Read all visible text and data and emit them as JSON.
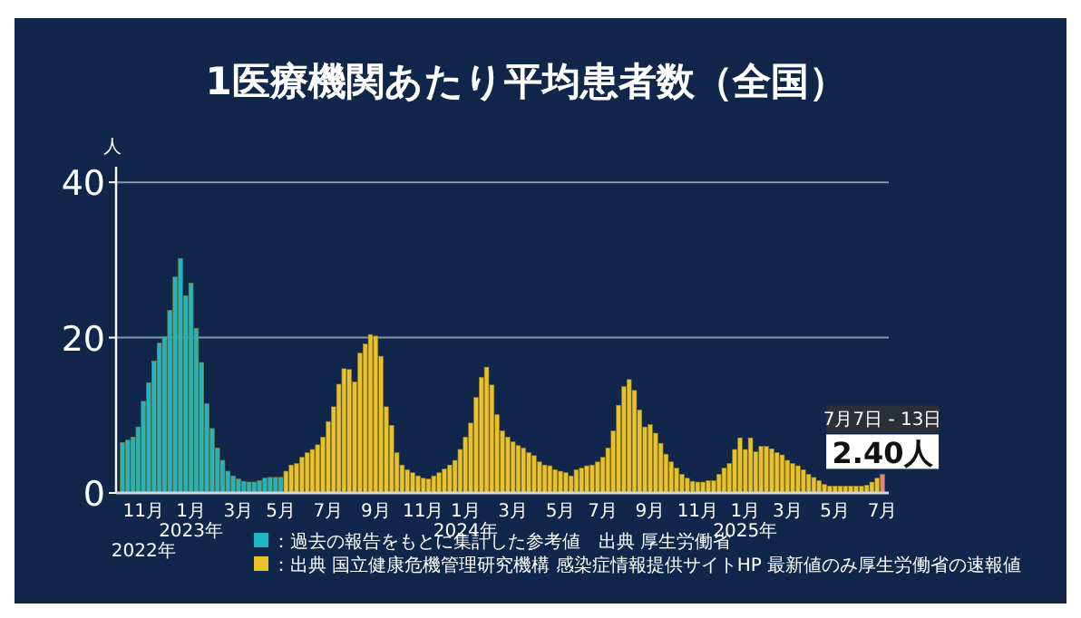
{
  "chart_data": {
    "type": "bar",
    "title": "1医療機関あたり平均患者数（全国）",
    "ylabel": "人",
    "categories": [
      null,
      null,
      null,
      null,
      "11月\n2022年",
      null,
      null,
      null,
      null,
      null,
      null,
      null,
      null,
      "1月\n2023年",
      null,
      null,
      null,
      null,
      null,
      null,
      null,
      null,
      "3月",
      null,
      null,
      null,
      null,
      null,
      null,
      null,
      "5月",
      null,
      null,
      null,
      null,
      null,
      null,
      null,
      null,
      "7月",
      null,
      null,
      null,
      null,
      null,
      null,
      null,
      null,
      "9月",
      null,
      null,
      null,
      null,
      null,
      null,
      null,
      null,
      "11月",
      null,
      null,
      null,
      null,
      null,
      null,
      null,
      "1月\n2024年",
      null,
      null,
      null,
      null,
      null,
      null,
      null,
      null,
      "3月",
      null,
      null,
      null,
      null,
      null,
      null,
      null,
      null,
      "5月",
      null,
      null,
      null,
      null,
      null,
      null,
      null,
      "7月",
      null,
      null,
      null,
      null,
      null,
      null,
      null,
      null,
      "9月",
      null,
      null,
      null,
      null,
      null,
      null,
      null,
      null,
      "11月",
      null,
      null,
      null,
      null,
      null,
      null,
      null,
      null,
      "1月\n2025年",
      null,
      null,
      null,
      null,
      null,
      null,
      null,
      "3月",
      null,
      null,
      null,
      null,
      null,
      null,
      null,
      null,
      "5月",
      null,
      null,
      null,
      null,
      null,
      null,
      null,
      null,
      "7月"
    ],
    "series": [
      {
        "name": "：過去の報告をもとに集計した参考値　出典 厚生労働省",
        "color": "#1fb5c4",
        "values": [
          6.5,
          6.8,
          7.2,
          8.5,
          11.8,
          14.2,
          17,
          19.3,
          20.1,
          23.5,
          27.8,
          30.2,
          25.4,
          27,
          21.2,
          16.8,
          11.5,
          8.3,
          5.8,
          4.2,
          2.8,
          2.2,
          1.8,
          1.5,
          1.4,
          1.4,
          1.6,
          1.9,
          2.0,
          2.0,
          2.0,
          null,
          null,
          null,
          null,
          null,
          null,
          null,
          null,
          null,
          null,
          null,
          null,
          null,
          null,
          null,
          null,
          null,
          null,
          null,
          null,
          null,
          null,
          null,
          null,
          null,
          null,
          null,
          null,
          null,
          null,
          null,
          null,
          null,
          null,
          null,
          null,
          null,
          null,
          null,
          null,
          null,
          null,
          null,
          null,
          null,
          null,
          null,
          null,
          null,
          null,
          null,
          null,
          null,
          null,
          null,
          null,
          null,
          null,
          null,
          null,
          null,
          null,
          null,
          null,
          null,
          null,
          null,
          null,
          null,
          null,
          null,
          null,
          null,
          null,
          null,
          null,
          null,
          null,
          null,
          null,
          null,
          null,
          null,
          null,
          null,
          null,
          null,
          null,
          null,
          null,
          null,
          null,
          null,
          null,
          null,
          null,
          null,
          null,
          null,
          null,
          null,
          null,
          null,
          null,
          null,
          null,
          null,
          null,
          null,
          null,
          null,
          null,
          null,
          null
        ]
      },
      {
        "name": "：出典 国立健康危機管理研究機構 感染症情報提供サイトHP 最新値のみ厚生労働省の速報値",
        "color": "#e8c12c",
        "values": [
          null,
          null,
          null,
          null,
          null,
          null,
          null,
          null,
          null,
          null,
          null,
          null,
          null,
          null,
          null,
          null,
          null,
          null,
          null,
          null,
          null,
          null,
          null,
          null,
          null,
          null,
          null,
          null,
          null,
          null,
          null,
          2.8,
          3.6,
          3.8,
          4.6,
          5.2,
          5.6,
          6.2,
          7.2,
          9.2,
          11.1,
          14,
          16,
          15.9,
          14.3,
          18,
          19.2,
          20.4,
          20.2,
          17.6,
          11.1,
          8.7,
          5.2,
          3.6,
          3.0,
          2.6,
          2.2,
          1.9,
          1.8,
          2.2,
          2.6,
          3.1,
          3.6,
          4.2,
          5.6,
          7.2,
          9,
          12.3,
          14.9,
          16.2,
          13.9,
          10.1,
          8,
          7.2,
          6.6,
          6.1,
          5.8,
          5.2,
          4.8,
          4,
          3.6,
          3.5,
          3,
          2.8,
          2.6,
          2.2,
          3,
          3.2,
          3.5,
          3.6,
          4,
          4.6,
          5.8,
          8,
          11.3,
          13.7,
          14.6,
          13.2,
          10.7,
          8.5,
          8.8,
          7.7,
          6.4,
          5,
          4,
          3.2,
          2.4,
          1.9,
          1.5,
          1.4,
          1.4,
          1.6,
          1.6,
          2.4,
          3.2,
          3.8,
          5.6,
          7.1,
          5.6,
          7.1,
          5.3,
          6,
          6,
          5.7,
          5.2,
          4.9,
          4.2,
          3.8,
          3.5,
          3,
          2.4,
          2,
          1.6,
          1.1,
          0.9,
          0.9,
          0.9,
          0.9,
          0.9,
          0.9,
          0.9,
          1,
          1.4,
          1.9,
          null
        ]
      },
      {
        "color": "#e8837a",
        "values": [
          null,
          null,
          null,
          null,
          null,
          null,
          null,
          null,
          null,
          null,
          null,
          null,
          null,
          null,
          null,
          null,
          null,
          null,
          null,
          null,
          null,
          null,
          null,
          null,
          null,
          null,
          null,
          null,
          null,
          null,
          null,
          null,
          null,
          null,
          null,
          null,
          null,
          null,
          null,
          null,
          null,
          null,
          null,
          null,
          null,
          null,
          null,
          null,
          null,
          null,
          null,
          null,
          null,
          null,
          null,
          null,
          null,
          null,
          null,
          null,
          null,
          null,
          null,
          null,
          null,
          null,
          null,
          null,
          null,
          null,
          null,
          null,
          null,
          null,
          null,
          null,
          null,
          null,
          null,
          null,
          null,
          null,
          null,
          null,
          null,
          null,
          null,
          null,
          null,
          null,
          null,
          null,
          null,
          null,
          null,
          null,
          null,
          null,
          null,
          null,
          null,
          null,
          null,
          null,
          null,
          null,
          null,
          null,
          null,
          null,
          null,
          null,
          null,
          null,
          null,
          null,
          null,
          null,
          null,
          null,
          null,
          null,
          null,
          null,
          null,
          null,
          null,
          null,
          null,
          null,
          null,
          null,
          null,
          null,
          null,
          null,
          null,
          null,
          null,
          null,
          null,
          null,
          null,
          null,
          2.4
        ],
        "value_labels": [
          null,
          null,
          null,
          null,
          null,
          null,
          null,
          null,
          null,
          null,
          null,
          null,
          null,
          null,
          null,
          null,
          null,
          null,
          null,
          null,
          null,
          null,
          null,
          null,
          null,
          null,
          null,
          null,
          null,
          null,
          null,
          null,
          null,
          null,
          null,
          null,
          null,
          null,
          null,
          null,
          null,
          null,
          null,
          null,
          null,
          null,
          null,
          null,
          null,
          null,
          null,
          null,
          null,
          null,
          null,
          null,
          null,
          null,
          null,
          null,
          null,
          null,
          null,
          null,
          null,
          null,
          null,
          null,
          null,
          null,
          null,
          null,
          null,
          null,
          null,
          null,
          null,
          null,
          null,
          null,
          null,
          null,
          null,
          null,
          null,
          null,
          null,
          null,
          null,
          null,
          null,
          null,
          null,
          null,
          null,
          null,
          null,
          null,
          null,
          null,
          null,
          null,
          null,
          null,
          null,
          null,
          null,
          null,
          null,
          null,
          null,
          null,
          null,
          null,
          null,
          null,
          null,
          null,
          null,
          null,
          null,
          null,
          null,
          null,
          null,
          null,
          null,
          null,
          null,
          null,
          null,
          null,
          null,
          null,
          null,
          null,
          null,
          null,
          null,
          null,
          null,
          null,
          null,
          null,
          "2.40人"
        ]
      }
    ],
    "annotations": [
      "7月7日 - 13日"
    ],
    "ylim": [
      0,
      42
    ],
    "yticks": [
      0,
      20,
      40
    ],
    "grid": "y",
    "legend": "bottom"
  }
}
